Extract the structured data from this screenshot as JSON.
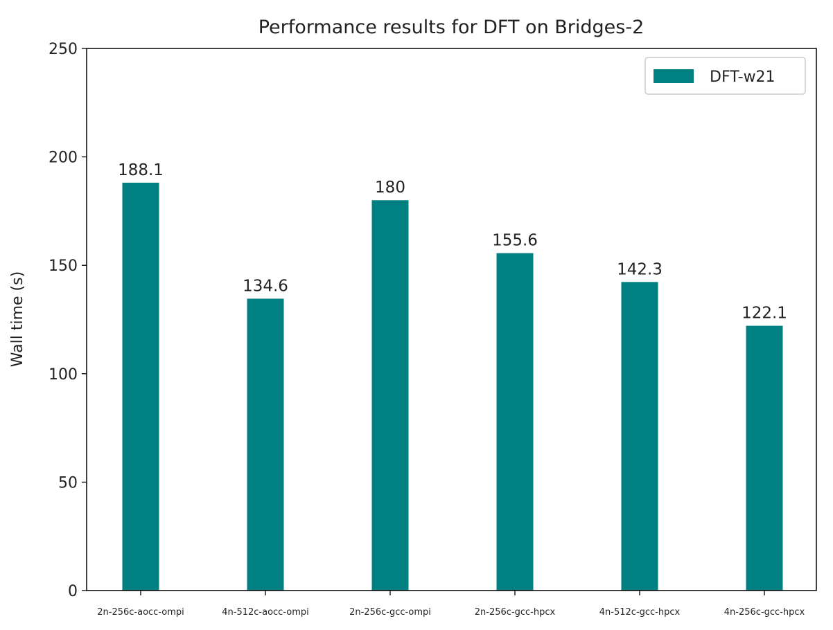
{
  "chart_data": {
    "type": "bar",
    "title": "Performance results for DFT on Bridges-2",
    "xlabel": "",
    "ylabel": "Wall time (s)",
    "ylim": [
      0,
      250
    ],
    "yticks": [
      0,
      50,
      100,
      150,
      200,
      250
    ],
    "grid": false,
    "legend_position": "top-right",
    "categories": [
      "2n-256c-aocc-ompi",
      "4n-512c-aocc-ompi",
      "2n-256c-gcc-ompi",
      "2n-256c-gcc-hpcx",
      "4n-512c-gcc-hpcx",
      "4n-256c-gcc-hpcx"
    ],
    "series": [
      {
        "name": "DFT-w21",
        "color": "#008080",
        "values": [
          188.1,
          134.6,
          180,
          155.6,
          142.3,
          122.1
        ],
        "labels": [
          "188.1",
          "134.6",
          "180",
          "155.6",
          "142.3",
          "122.1"
        ]
      }
    ]
  }
}
